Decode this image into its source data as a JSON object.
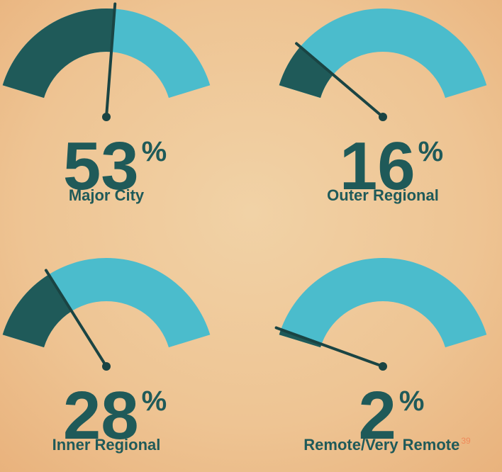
{
  "chart_data": {
    "type": "gauge",
    "categories": [
      "Major City",
      "Outer Regional",
      "Inner Regional",
      "Remote/Very Remote"
    ],
    "values": [
      53,
      16,
      28,
      2
    ],
    "unit": "%",
    "footnotes": [
      null,
      null,
      null,
      "39"
    ],
    "ylim": [
      0,
      100
    ],
    "fill_color": "#1f5a59",
    "track_color": "#4bbccc",
    "footnote_color": "#f08a5a"
  }
}
